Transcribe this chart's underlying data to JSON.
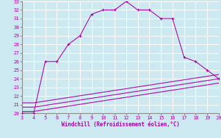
{
  "xlabel": "Windchill (Refroidissement éolien,°C)",
  "xlim": [
    3,
    20
  ],
  "ylim": [
    20,
    33
  ],
  "xticks": [
    3,
    4,
    5,
    6,
    7,
    8,
    9,
    10,
    11,
    12,
    13,
    14,
    15,
    16,
    17,
    18,
    19,
    20
  ],
  "yticks": [
    20,
    21,
    22,
    23,
    24,
    25,
    26,
    27,
    28,
    29,
    30,
    31,
    32,
    33
  ],
  "bg_color": "#cce8f0",
  "grid_color": "#ffffff",
  "line_color": "#aa00aa",
  "spine_color": "#888888",
  "main_x": [
    3,
    4,
    5,
    6,
    7,
    8,
    9,
    10,
    11,
    12,
    13,
    14,
    15,
    16,
    17,
    18,
    19,
    20
  ],
  "main_y": [
    20,
    20,
    26,
    26,
    28,
    29,
    31.5,
    32,
    32,
    33,
    32,
    32,
    31,
    31,
    26.5,
    26,
    25,
    24
  ],
  "line2_x": [
    3,
    4,
    20
  ],
  "line2_y": [
    21.2,
    21.2,
    24.5
  ],
  "line3_x": [
    3,
    4,
    20
  ],
  "line3_y": [
    20.7,
    20.7,
    24.0
  ],
  "line4_x": [
    3,
    4,
    20
  ],
  "line4_y": [
    20.2,
    20.2,
    23.5
  ]
}
